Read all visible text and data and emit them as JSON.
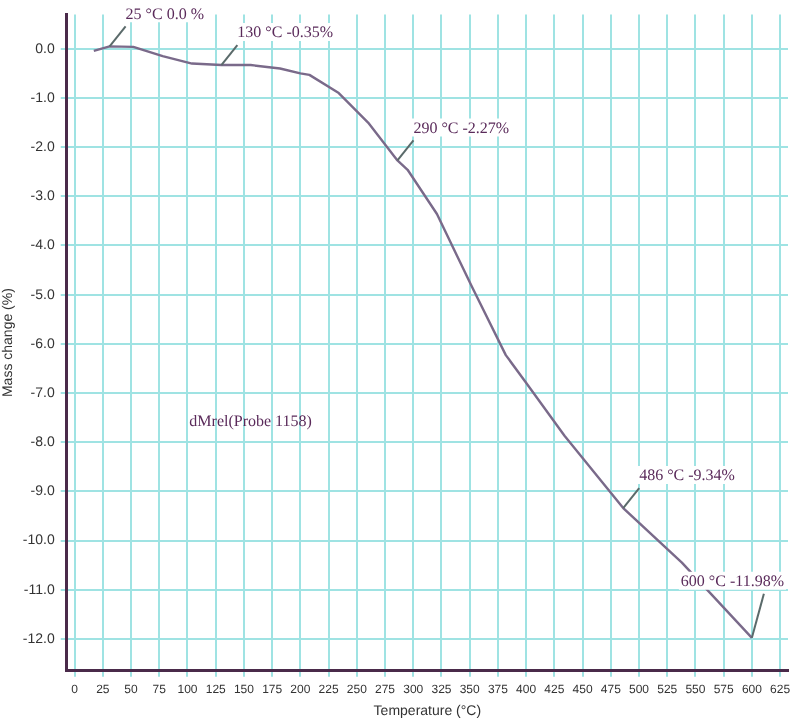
{
  "chart_data": {
    "type": "line",
    "xlabel": "Temperature (°C)",
    "ylabel": "Mass change (%)",
    "x": [
      17,
      31,
      52,
      78,
      104,
      130,
      156,
      182,
      200,
      208,
      234,
      260,
      286,
      295,
      321,
      352,
      382,
      399,
      434,
      486,
      538,
      600
    ],
    "series": [
      {
        "color": "#7a6a8a",
        "values": [
          -0.04,
          0.05,
          0.04,
          -0.15,
          -0.3,
          -0.33,
          -0.33,
          -0.4,
          -0.5,
          -0.53,
          -0.9,
          -1.5,
          -2.27,
          -2.46,
          -3.36,
          -4.84,
          -6.23,
          -6.76,
          -7.87,
          -9.34,
          -10.45,
          -11.98
        ]
      }
    ],
    "xlim": [
      -7,
      632
    ],
    "ylim": [
      -12.65,
      0.7
    ],
    "xticks": [
      0,
      25,
      50,
      75,
      100,
      125,
      150,
      175,
      200,
      225,
      250,
      275,
      300,
      325,
      350,
      375,
      400,
      425,
      450,
      475,
      500,
      525,
      550,
      575,
      600,
      625
    ],
    "yticks": [
      {
        "value": 0,
        "label": "0.0"
      },
      {
        "value": -1,
        "label": "-1.0"
      },
      {
        "value": -2,
        "label": "-2.0"
      },
      {
        "value": -3,
        "label": "-3.0"
      },
      {
        "value": -4,
        "label": "-4.0"
      },
      {
        "value": -5,
        "label": "-5.0"
      },
      {
        "value": -6,
        "label": "-6.0"
      },
      {
        "value": -7,
        "label": "-7.0"
      },
      {
        "value": -8,
        "label": "-8.0"
      },
      {
        "value": -9,
        "label": "-9.0"
      },
      {
        "value": -10,
        "label": "-10.0"
      },
      {
        "value": -11,
        "label": "-11.0"
      },
      {
        "value": -12,
        "label": "-12.0"
      }
    ],
    "grid": true,
    "marker": "none",
    "line_style": "solid",
    "annotations": [
      {
        "text": "25 °C 0.0 %",
        "x": 31,
        "y": 0.05
      },
      {
        "text": "130 °C -0.35%",
        "x": 130,
        "y": -0.33
      },
      {
        "text": "290 °C -2.27%",
        "x": 286,
        "y": -2.27
      },
      {
        "text": "486 °C -9.34%",
        "x": 486,
        "y": -9.34
      },
      {
        "text": "600 °C -11.98%",
        "x": 600,
        "y": -11.98
      },
      "dMrel(Probe 1158)"
    ]
  }
}
